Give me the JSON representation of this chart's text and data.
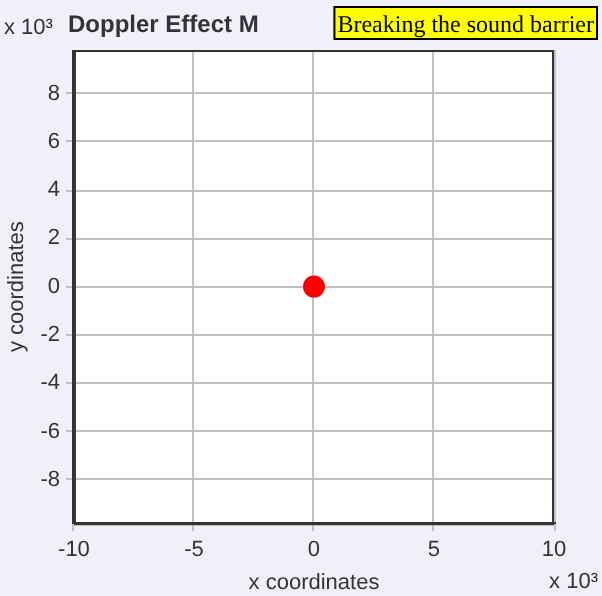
{
  "chart_data": {
    "type": "scatter",
    "title": "Doppler Effect M",
    "xlabel": "x coordinates",
    "ylabel": "y coordinates",
    "series": [
      {
        "color": "#ff0000",
        "x": [
          0
        ],
        "values": [
          0
        ]
      }
    ],
    "xlim": [
      -10,
      10
    ],
    "xticks": [
      -10,
      -5,
      0,
      5,
      10
    ],
    "ylim": [
      -9.8,
      9.8
    ],
    "yticks": [
      -8,
      -6,
      -4,
      -2,
      0,
      2,
      4,
      6,
      8
    ],
    "grid": true,
    "legend": false,
    "marker": "circle",
    "annotations": [
      "x 10³",
      "x 10³",
      "Breaking the sound barrier"
    ]
  }
}
